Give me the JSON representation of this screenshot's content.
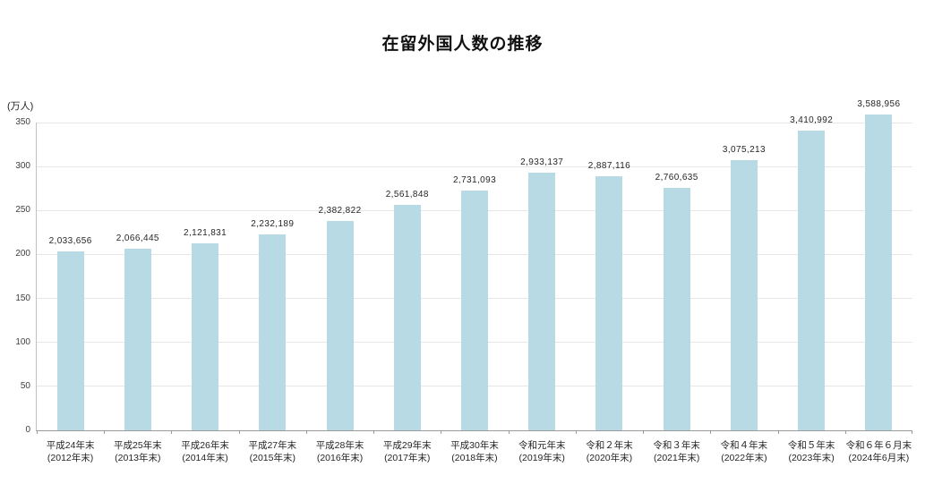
{
  "page": {
    "title": "在留外国人数の推移"
  },
  "chart_data": {
    "type": "bar",
    "title": "在留外国人数の推移",
    "xlabel": "",
    "ylabel": "(万人)",
    "y_unit_label": "(万人)",
    "ylim": [
      0,
      350
    ],
    "yticks": [
      0,
      50,
      100,
      150,
      200,
      250,
      300,
      350
    ],
    "grid": "horizontal",
    "legend": "none",
    "bar_color": "#b7dae5",
    "value_divisor": 10000,
    "categories": [
      "平成24年末",
      "平成25年末",
      "平成26年末",
      "平成27年末",
      "平成28年末",
      "平成29年末",
      "平成30年末",
      "令和元年末",
      "令和２年末",
      "令和３年末",
      "令和４年末",
      "令和５年末",
      "令和６年６月末"
    ],
    "categories_sub": [
      "(2012年末)",
      "(2013年末)",
      "(2014年末)",
      "(2015年末)",
      "(2016年末)",
      "(2017年末)",
      "(2018年末)",
      "(2019年末)",
      "(2020年末)",
      "(2021年末)",
      "(2022年末)",
      "(2023年末)",
      "(2024年6月末)"
    ],
    "values": [
      2033656,
      2066445,
      2121831,
      2232189,
      2382822,
      2561848,
      2731093,
      2933137,
      2887116,
      2760635,
      3075213,
      3410992,
      3588956
    ],
    "value_labels": [
      "2,033,656",
      "2,066,445",
      "2,121,831",
      "2,232,189",
      "2,382,822",
      "2,561,848",
      "2,731,093",
      "2,933,137",
      "2,887,116",
      "2,760,635",
      "3,075,213",
      "3,410,992",
      "3,588,956"
    ]
  }
}
